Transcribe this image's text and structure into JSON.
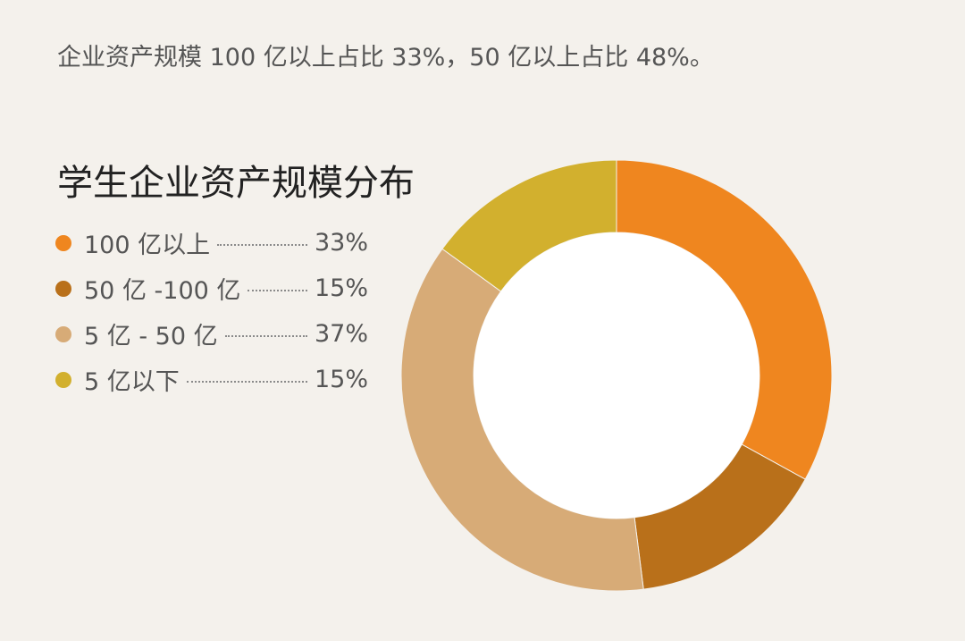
{
  "summary_text": "企业资产规模 100 亿以上占比 33%，50 亿以上占比 48%。",
  "chart_data": {
    "type": "pie",
    "title": "学生企业资产规模分布",
    "donut": true,
    "legend_position": "left",
    "categories": [
      "100 亿以上",
      "50 亿 -100 亿",
      "5 亿 - 50 亿",
      "5 亿以下"
    ],
    "values": [
      33,
      15,
      37,
      15
    ],
    "value_labels": [
      "33%",
      "15%",
      "37%",
      "15%"
    ],
    "colors": [
      "#ef861f",
      "#b9701a",
      "#d7ab77",
      "#d2b02e"
    ]
  }
}
